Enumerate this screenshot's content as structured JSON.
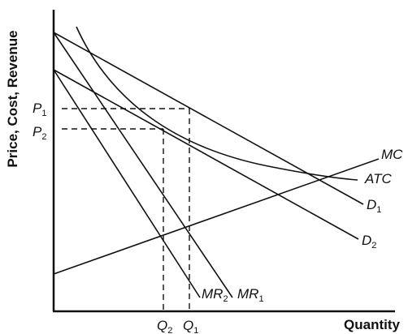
{
  "axes": {
    "y_title": "Price, Cost, Revenue",
    "x_title": "Quantity"
  },
  "ticks": {
    "p1": {
      "main": "P",
      "sub": "1"
    },
    "p2": {
      "main": "P",
      "sub": "2"
    },
    "q1": {
      "main": "Q",
      "sub": "1"
    },
    "q2": {
      "main": "Q",
      "sub": "2"
    }
  },
  "curves": {
    "mc": {
      "label": "MC"
    },
    "atc": {
      "label": "ATC"
    },
    "d1": {
      "main": "D",
      "sub": "1"
    },
    "d2": {
      "main": "D",
      "sub": "2"
    },
    "mr1": {
      "main": "MR",
      "sub": "1"
    },
    "mr2": {
      "main": "MR",
      "sub": "2"
    }
  }
}
